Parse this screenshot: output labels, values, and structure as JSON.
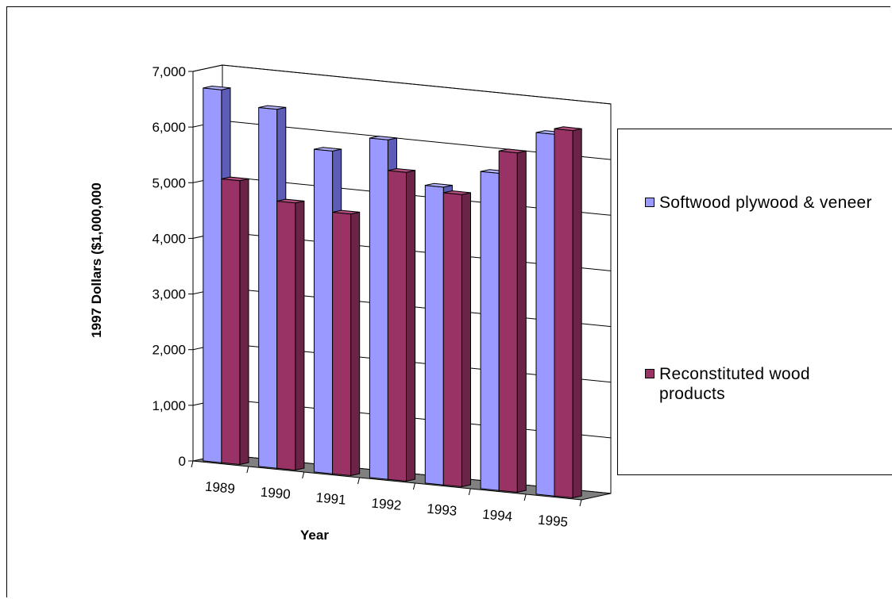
{
  "colors": {
    "series1_face": "#9999ff",
    "series1_side": "#5d5db8",
    "series1_top": "#b3b3ff",
    "series2_face": "#993366",
    "series2_side": "#6b2347",
    "series2_top": "#b34d80",
    "floor": "#808080",
    "frame": "#000000"
  },
  "chart_data": {
    "type": "bar",
    "title": "",
    "xlabel": "Year",
    "ylabel": "1997 Dollars ($1,000,000",
    "ylim": [
      0,
      7000
    ],
    "yticks": [
      0,
      1000,
      2000,
      3000,
      4000,
      5000,
      6000,
      7000
    ],
    "ytick_labels": [
      "0",
      "1,000",
      "2,000",
      "3,000",
      "4,000",
      "5,000",
      "6,000",
      "7,000"
    ],
    "categories": [
      "1989",
      "1990",
      "1991",
      "1992",
      "1993",
      "1994",
      "1995"
    ],
    "series": [
      {
        "name": "Softwood plywood & veneer",
        "values": [
          6700,
          6450,
          5800,
          6100,
          5350,
          5700,
          6500
        ]
      },
      {
        "name": "Reconstituted wood products",
        "values": [
          5100,
          4800,
          4700,
          5550,
          5250,
          6100,
          6600
        ]
      }
    ],
    "grid": true,
    "legend_position": "right",
    "three_d": true
  },
  "legend": {
    "items": [
      {
        "label": "Softwood plywood & veneer"
      },
      {
        "label": "Reconstituted wood products"
      }
    ]
  }
}
